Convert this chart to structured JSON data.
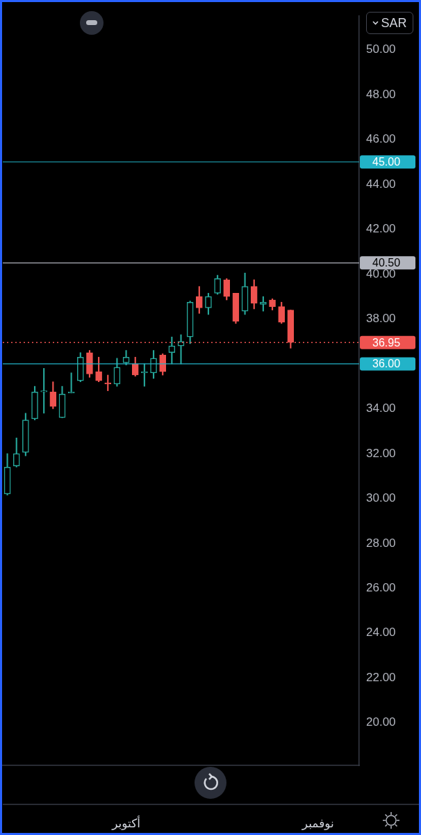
{
  "chart_data": {
    "type": "candlestick",
    "categories": [
      null,
      null,
      null,
      null,
      null,
      null,
      null,
      null,
      null,
      null,
      null,
      null,
      null,
      "أكتوبر",
      null,
      null,
      null,
      null,
      null,
      null,
      null,
      null,
      null,
      null,
      null,
      null,
      null,
      null,
      null,
      null,
      null,
      null,
      null,
      null,
      "نوفمبر",
      null,
      null,
      null,
      null
    ],
    "ohlc": [
      [
        30.2,
        32.0,
        30.15,
        31.4
      ],
      [
        31.45,
        32.7,
        31.4,
        32.0
      ],
      [
        32.05,
        33.8,
        31.9,
        33.5
      ],
      [
        33.55,
        35.0,
        33.5,
        34.75
      ],
      [
        34.75,
        35.8,
        33.8,
        34.8
      ],
      [
        34.75,
        35.2,
        34.0,
        34.1
      ],
      [
        33.6,
        35.0,
        33.6,
        34.65
      ],
      [
        34.7,
        35.6,
        34.7,
        34.75
      ],
      [
        35.25,
        36.5,
        35.2,
        36.3
      ],
      [
        36.5,
        36.6,
        35.4,
        35.55
      ],
      [
        35.65,
        36.3,
        35.2,
        35.25
      ],
      [
        35.15,
        35.5,
        34.8,
        35.1
      ],
      [
        35.1,
        36.25,
        35.0,
        35.85
      ],
      [
        36.05,
        36.6,
        35.95,
        36.3
      ],
      [
        36.0,
        36.3,
        35.45,
        35.5
      ],
      [
        35.6,
        36.0,
        35.0,
        35.65
      ],
      [
        35.6,
        36.6,
        35.35,
        36.25
      ],
      [
        36.4,
        36.45,
        35.5,
        35.65
      ],
      [
        36.5,
        37.2,
        36.0,
        36.8
      ],
      [
        36.8,
        37.3,
        36.0,
        37.0
      ],
      [
        37.2,
        38.8,
        36.9,
        38.75
      ],
      [
        39.0,
        39.45,
        38.25,
        38.5
      ],
      [
        38.5,
        39.15,
        38.2,
        39.0
      ],
      [
        39.15,
        39.95,
        39.1,
        39.8
      ],
      [
        39.75,
        39.8,
        38.85,
        39.0
      ],
      [
        39.15,
        39.15,
        37.8,
        37.9
      ],
      [
        38.35,
        40.05,
        38.2,
        39.45
      ],
      [
        39.45,
        39.75,
        38.45,
        38.7
      ],
      [
        38.65,
        39.0,
        38.35,
        38.75
      ],
      [
        38.85,
        38.9,
        38.4,
        38.55
      ],
      [
        38.55,
        38.75,
        37.8,
        37.85
      ],
      [
        38.4,
        38.4,
        36.7,
        36.95
      ],
      null,
      null,
      null,
      null,
      null,
      null,
      null
    ],
    "colors": [
      "#26a69a",
      "#26a69a",
      "#26a69a",
      "#26a69a",
      "#26a69a",
      "#ef5350",
      "#26a69a",
      "#26a69a",
      "#26a69a",
      "#ef5350",
      "#ef5350",
      "#ef5350",
      "#26a69a",
      "#26a69a",
      "#ef5350",
      "#26a69a",
      "#26a69a",
      "#ef5350",
      "#26a69a",
      "#26a69a",
      "#26a69a",
      "#ef5350",
      "#26a69a",
      "#26a69a",
      "#ef5350",
      "#ef5350",
      "#26a69a",
      "#ef5350",
      "#26a69a",
      "#ef5350",
      "#ef5350",
      "#ef5350",
      null,
      null,
      null,
      null,
      null,
      null,
      null
    ],
    "ylim": [
      18.1,
      51.5
    ],
    "yticks": [
      {
        "value": 20,
        "label": "20.00"
      },
      {
        "value": 22,
        "label": "22.00"
      },
      {
        "value": 24,
        "label": "24.00"
      },
      {
        "value": 26,
        "label": "26.00"
      },
      {
        "value": 28,
        "label": "28.00"
      },
      {
        "value": 30,
        "label": "30.00"
      },
      {
        "value": 32,
        "label": "32.00"
      },
      {
        "value": 34,
        "label": "34.00"
      },
      {
        "value": 38,
        "label": "38.00"
      },
      {
        "value": 40,
        "label": "40.00"
      },
      {
        "value": 42,
        "label": "42.00"
      },
      {
        "value": 44,
        "label": "44.00"
      },
      {
        "value": 46,
        "label": "46.00"
      },
      {
        "value": 48,
        "label": "48.00"
      },
      {
        "value": 50,
        "label": "50.00"
      }
    ],
    "ref_lines": [
      {
        "axis": "y",
        "value": 45,
        "label": "45.00",
        "color": "#22b3c8"
      },
      {
        "axis": "y",
        "value": 40.5,
        "label": "40.50",
        "color": "#b2b5be"
      },
      {
        "axis": "y",
        "value": 36.95,
        "label": "36.95",
        "color": "#ef5350",
        "line_style": "dotted"
      },
      {
        "axis": "y",
        "value": 36,
        "label": "36.00",
        "color": "#22b3c8"
      }
    ],
    "annotations": [
      "SAR"
    ],
    "grid": false,
    "legend": false
  }
}
